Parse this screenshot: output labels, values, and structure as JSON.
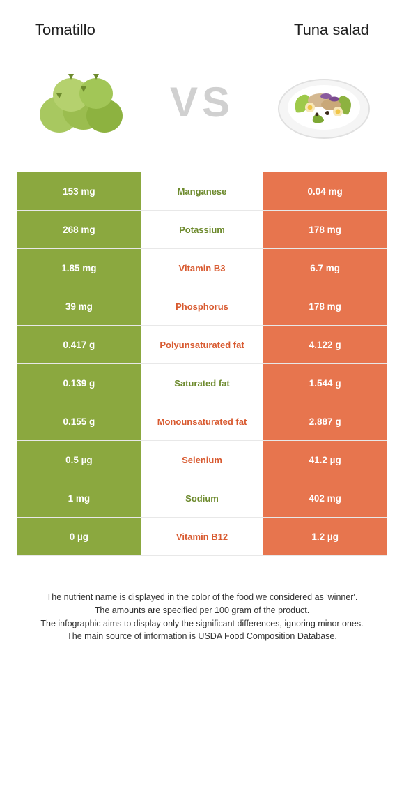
{
  "left_food": "Tomatillo",
  "right_food": "Tuna salad",
  "vs_label": "VS",
  "colors": {
    "left": "#8ba83f",
    "right": "#e7754e",
    "left_text": "#6d8a2d",
    "right_text": "#d85a30"
  },
  "rows": [
    {
      "left": "153 mg",
      "mid": "Manganese",
      "right": "0.04 mg",
      "winner": "left"
    },
    {
      "left": "268 mg",
      "mid": "Potassium",
      "right": "178 mg",
      "winner": "left"
    },
    {
      "left": "1.85 mg",
      "mid": "Vitamin B3",
      "right": "6.7 mg",
      "winner": "right"
    },
    {
      "left": "39 mg",
      "mid": "Phosphorus",
      "right": "178 mg",
      "winner": "right"
    },
    {
      "left": "0.417 g",
      "mid": "Polyunsaturated fat",
      "right": "4.122 g",
      "winner": "right"
    },
    {
      "left": "0.139 g",
      "mid": "Saturated fat",
      "right": "1.544 g",
      "winner": "left"
    },
    {
      "left": "0.155 g",
      "mid": "Monounsaturated fat",
      "right": "2.887 g",
      "winner": "right"
    },
    {
      "left": "0.5 µg",
      "mid": "Selenium",
      "right": "41.2 µg",
      "winner": "right"
    },
    {
      "left": "1 mg",
      "mid": "Sodium",
      "right": "402 mg",
      "winner": "left"
    },
    {
      "left": "0 µg",
      "mid": "Vitamin B12",
      "right": "1.2 µg",
      "winner": "right"
    }
  ],
  "footer": {
    "l1": "The nutrient name is displayed in the color of the food we considered as 'winner'.",
    "l2": "The amounts are specified per 100 gram of the product.",
    "l3": "The infographic aims to display only the significant differences, ignoring minor ones.",
    "l4": "The main source of information is USDA Food Composition Database."
  }
}
